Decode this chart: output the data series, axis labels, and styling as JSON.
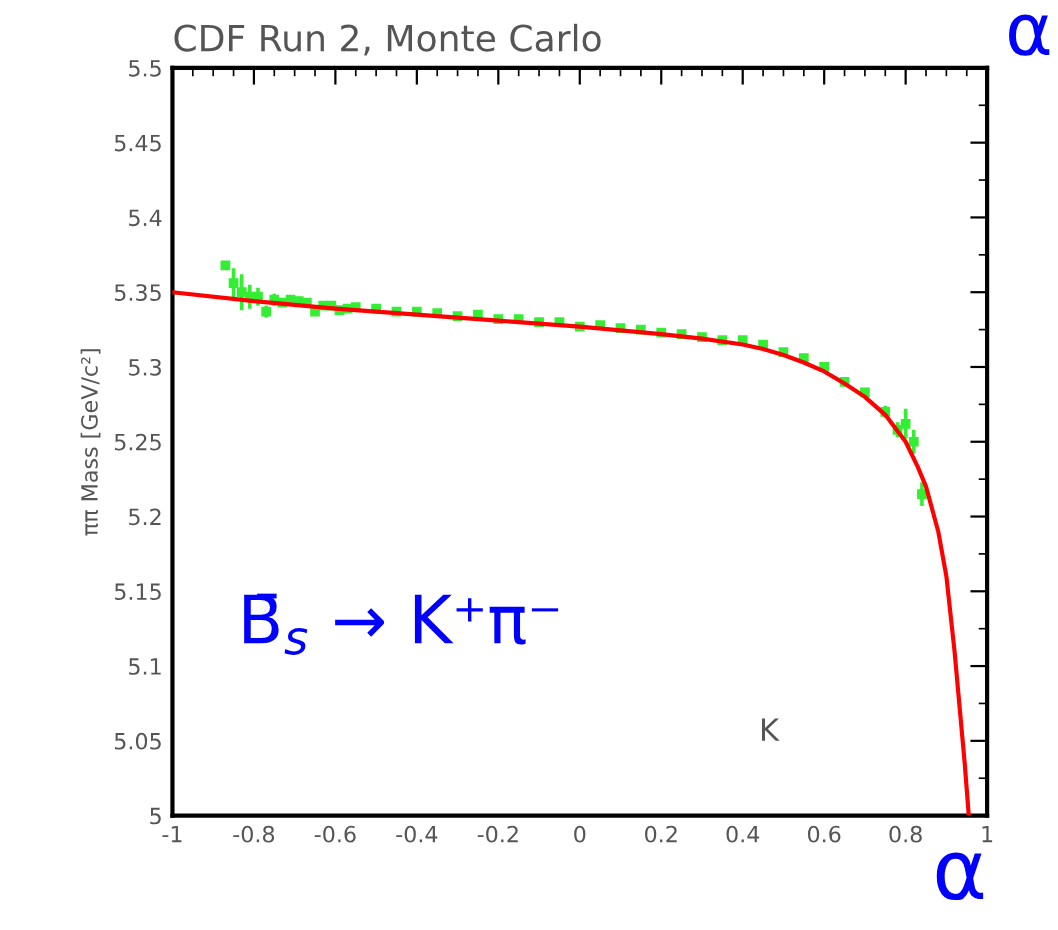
{
  "chart_data": {
    "type": "scatter",
    "title": "CDF Run 2, Monte Carlo",
    "ylabel": "ππ Mass [GeV/c²]",
    "xlabel": "α",
    "annotations": [
      "B̄$_{s}$ → K⁺π⁻",
      "K",
      "α"
    ],
    "xlim": [
      -1,
      1
    ],
    "ylim": [
      5,
      5.5
    ],
    "xticks": [
      -1,
      -0.8,
      -0.6,
      -0.4,
      -0.2,
      0,
      0.2,
      0.4,
      0.6,
      0.8,
      1
    ],
    "yticks": [
      5,
      5.05,
      5.1,
      5.15,
      5.2,
      5.25,
      5.3,
      5.35,
      5.4,
      5.45,
      5.5
    ],
    "grid": false,
    "series": [
      {
        "type": "line",
        "color": "#ff0000",
        "line_style": "solid",
        "x": [
          -1,
          -0.8,
          -0.6,
          -0.4,
          -0.2,
          0,
          0.2,
          0.3,
          0.4,
          0.45,
          0.5,
          0.55,
          0.6,
          0.65,
          0.7,
          0.75,
          0.8,
          0.83,
          0.85,
          0.87,
          0.88,
          0.9,
          0.92,
          0.93,
          0.94,
          0.945,
          0.955
        ],
        "values": [
          5.35,
          5.344,
          5.339,
          5.335,
          5.331,
          5.327,
          5.322,
          5.319,
          5.315,
          5.312,
          5.308,
          5.303,
          5.297,
          5.289,
          5.28,
          5.268,
          5.25,
          5.233,
          5.22,
          5.2,
          5.19,
          5.16,
          5.11,
          5.08,
          5.05,
          5.035,
          5.0
        ]
      },
      {
        "color": "#33ee33",
        "marker": "square",
        "x": [
          -0.87,
          -0.85,
          -0.83,
          -0.81,
          -0.79,
          -0.77,
          -0.75,
          -0.73,
          -0.71,
          -0.69,
          -0.67,
          -0.65,
          -0.63,
          -0.61,
          -0.59,
          -0.57,
          -0.55,
          -0.5,
          -0.45,
          -0.4,
          -0.35,
          -0.3,
          -0.25,
          -0.2,
          -0.15,
          -0.1,
          -0.05,
          0,
          0.05,
          0.1,
          0.15,
          0.2,
          0.25,
          0.3,
          0.35,
          0.4,
          0.45,
          0.5,
          0.55,
          0.6,
          0.65,
          0.7,
          0.75,
          0.78,
          0.8,
          0.82,
          0.84
        ],
        "values": [
          5.368,
          5.356,
          5.35,
          5.347,
          5.347,
          5.337,
          5.345,
          5.343,
          5.345,
          5.344,
          5.343,
          5.337,
          5.341,
          5.341,
          5.338,
          5.339,
          5.34,
          5.339,
          5.337,
          5.337,
          5.336,
          5.334,
          5.335,
          5.332,
          5.332,
          5.33,
          5.33,
          5.327,
          5.328,
          5.326,
          5.325,
          5.323,
          5.322,
          5.32,
          5.318,
          5.318,
          5.315,
          5.31,
          5.306,
          5.3,
          5.29,
          5.283,
          5.27,
          5.258,
          5.262,
          5.25,
          5.215
        ],
        "errors": [
          null,
          0.01,
          0.012,
          0.008,
          0.006,
          0.004,
          0.004,
          0.003,
          0.003,
          0.003,
          0.003,
          0.002,
          0.002,
          0.002,
          0.002,
          0.002,
          0.002,
          0.002,
          0.002,
          0.002,
          0.002,
          0.002,
          0.002,
          0.002,
          0.002,
          0.002,
          0.002,
          0.002,
          0.002,
          0.002,
          0.002,
          0.002,
          0.002,
          0.002,
          0.002,
          0.002,
          0.002,
          0.002,
          0.002,
          0.002,
          0.003,
          0.003,
          0.004,
          0.005,
          0.01,
          0.008,
          0.008
        ],
        "xerrors": [
          0.01,
          0.01,
          0.01,
          0.01,
          0.01,
          0.01,
          0.01,
          0.01,
          0.01,
          0.01,
          0.01,
          0.01,
          0.01,
          0.01,
          0.01,
          0.01,
          0.01,
          0.01,
          0.01,
          0.01,
          0.01,
          0.01,
          0.01,
          0.01,
          0.01,
          0.01,
          0.01,
          0.01,
          0.01,
          0.01,
          0.01,
          0.01,
          0.01,
          0.01,
          0.01,
          0.01,
          0.01,
          0.01,
          0.01,
          0.01,
          0.01,
          0.01,
          0.01,
          0.01,
          0.01,
          0.01,
          0.01
        ]
      }
    ]
  }
}
